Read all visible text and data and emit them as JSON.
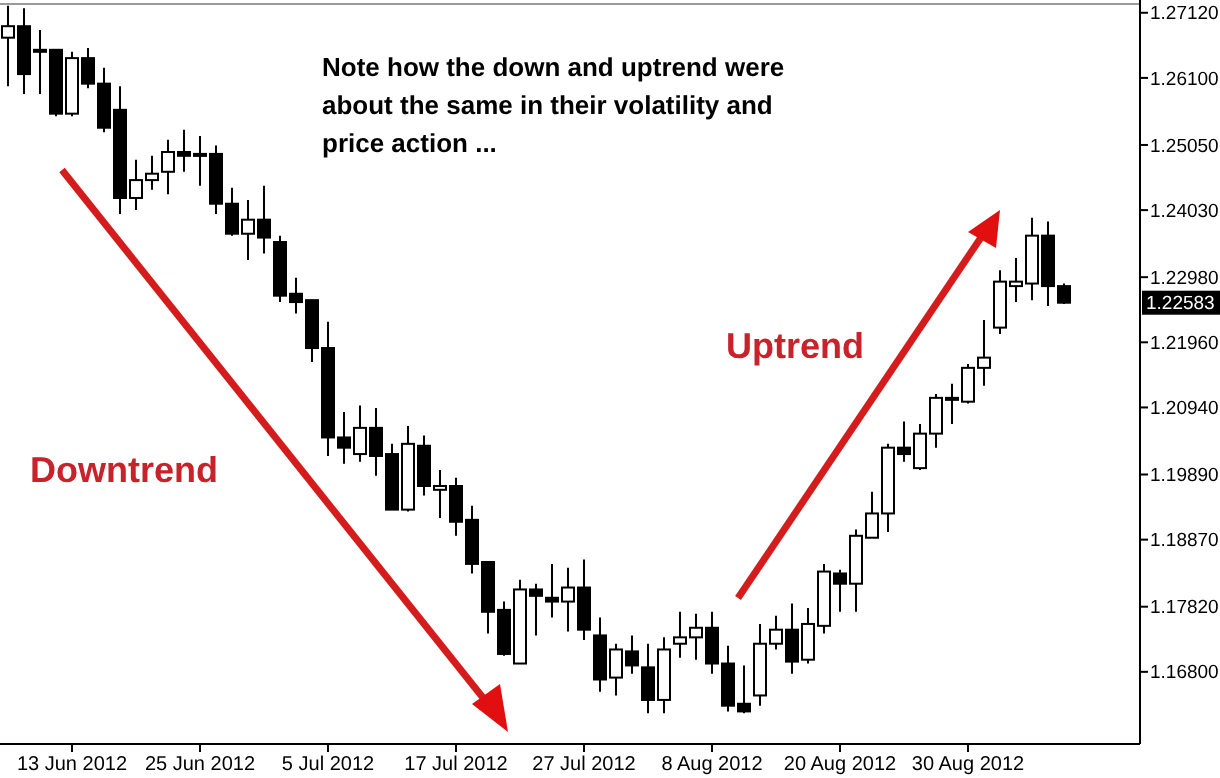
{
  "chart_data": {
    "type": "candlestick",
    "categories": [
      null,
      null,
      null,
      null,
      "13 Jun 2012",
      null,
      null,
      null,
      null,
      null,
      null,
      null,
      "25 Jun 2012",
      null,
      null,
      null,
      null,
      null,
      null,
      null,
      "5 Jul 2012",
      null,
      null,
      null,
      null,
      null,
      null,
      null,
      "17 Jul 2012",
      null,
      null,
      null,
      null,
      null,
      null,
      null,
      "27 Jul 2012",
      null,
      null,
      null,
      null,
      null,
      null,
      null,
      "8 Aug 2012",
      null,
      null,
      null,
      null,
      null,
      null,
      null,
      "20 Aug 2012",
      null,
      null,
      null,
      null,
      null,
      null,
      null,
      "30 Aug 2012",
      null,
      null,
      null,
      null,
      null,
      null
    ],
    "ohlc": [
      [
        1.2673,
        1.2723,
        1.2597,
        1.2691
      ],
      [
        1.2691,
        1.2719,
        1.2585,
        1.2616
      ],
      [
        1.2654,
        1.2685,
        1.2585,
        1.2651
      ],
      [
        1.2654,
        1.2654,
        1.255,
        1.2554
      ],
      [
        1.2554,
        1.2651,
        1.255,
        1.2641
      ],
      [
        1.2641,
        1.2657,
        1.2594,
        1.2601
      ],
      [
        1.2601,
        1.2626,
        1.2525,
        1.2532
      ],
      [
        1.256,
        1.2597,
        1.2397,
        1.2422
      ],
      [
        1.2422,
        1.2482,
        1.2403,
        1.245
      ],
      [
        1.245,
        1.2488,
        1.2435,
        1.246
      ],
      [
        1.2463,
        1.2513,
        1.2428,
        1.2494
      ],
      [
        1.2494,
        1.2529,
        1.2463,
        1.2488
      ],
      [
        1.2491,
        1.2519,
        1.2441,
        1.2488
      ],
      [
        1.2491,
        1.2504,
        1.2397,
        1.2413
      ],
      [
        1.2413,
        1.2438,
        1.2363,
        1.2366
      ],
      [
        1.2366,
        1.2419,
        1.2325,
        1.2388
      ],
      [
        1.2388,
        1.2441,
        1.2335,
        1.236
      ],
      [
        1.2353,
        1.2363,
        1.2259,
        1.2269
      ],
      [
        1.2272,
        1.2297,
        1.2241,
        1.2259
      ],
      [
        1.2262,
        1.2262,
        1.2165,
        1.2187
      ],
      [
        1.2187,
        1.2228,
        1.2018,
        1.2047
      ],
      [
        1.2047,
        1.2087,
        1.2006,
        1.2031
      ],
      [
        1.2021,
        1.2097,
        1.2009,
        1.2062
      ],
      [
        1.2062,
        1.2093,
        1.1987,
        1.2018
      ],
      [
        1.2021,
        1.2037,
        1.1934,
        1.1934
      ],
      [
        1.1934,
        1.2065,
        1.1931,
        1.2037
      ],
      [
        1.2034,
        1.205,
        1.1956,
        1.1971
      ],
      [
        1.1965,
        1.1996,
        1.1921,
        1.1971
      ],
      [
        1.1971,
        1.1984,
        1.1893,
        1.1915
      ],
      [
        1.1918,
        1.194,
        1.1834,
        1.1849
      ],
      [
        1.1852,
        1.1852,
        1.174,
        1.1774
      ],
      [
        1.1777,
        1.179,
        1.1705,
        1.1708
      ],
      [
        1.1693,
        1.1824,
        1.1693,
        1.1809
      ],
      [
        1.1809,
        1.1818,
        1.1737,
        1.1799
      ],
      [
        1.1796,
        1.1849,
        1.1765,
        1.179
      ],
      [
        1.179,
        1.1843,
        1.1743,
        1.1812
      ],
      [
        1.1812,
        1.1856,
        1.173,
        1.1746
      ],
      [
        1.1737,
        1.1765,
        1.1649,
        1.1668
      ],
      [
        1.1671,
        1.1724,
        1.1643,
        1.1715
      ],
      [
        1.1712,
        1.1737,
        1.1677,
        1.169
      ],
      [
        1.1687,
        1.1724,
        1.1615,
        1.1636
      ],
      [
        1.1636,
        1.1734,
        1.1615,
        1.1715
      ],
      [
        1.1724,
        1.1774,
        1.1702,
        1.1734
      ],
      [
        1.1734,
        1.1771,
        1.1699,
        1.1749
      ],
      [
        1.1749,
        1.1774,
        1.1677,
        1.1693
      ],
      [
        1.1693,
        1.1721,
        1.1618,
        1.1627
      ],
      [
        1.163,
        1.169,
        1.1615,
        1.1618
      ],
      [
        1.1643,
        1.1755,
        1.1627,
        1.1724
      ],
      [
        1.1724,
        1.1768,
        1.1715,
        1.1746
      ],
      [
        1.1746,
        1.1787,
        1.1677,
        1.1696
      ],
      [
        1.1699,
        1.178,
        1.1693,
        1.1755
      ],
      [
        1.1752,
        1.1849,
        1.174,
        1.1837
      ],
      [
        1.1834,
        1.184,
        1.1774,
        1.1818
      ],
      [
        1.1818,
        1.1903,
        1.1774,
        1.1893
      ],
      [
        1.189,
        1.1962,
        1.189,
        1.1928
      ],
      [
        1.1928,
        1.2037,
        1.1899,
        1.2031
      ],
      [
        1.2031,
        1.2072,
        1.2009,
        1.2021
      ],
      [
        1.1999,
        1.2068,
        1.1996,
        1.2053
      ],
      [
        1.2053,
        1.2115,
        1.2031,
        1.2109
      ],
      [
        1.2106,
        1.2131,
        1.2068,
        1.2109
      ],
      [
        1.2103,
        1.2162,
        1.21,
        1.2156
      ],
      [
        1.2156,
        1.2231,
        1.2128,
        1.2172
      ],
      [
        1.2219,
        1.2309,
        1.2209,
        1.2291
      ],
      [
        1.2284,
        1.2328,
        1.2259,
        1.2291
      ],
      [
        1.2288,
        1.2391,
        1.2262,
        1.2363
      ],
      [
        1.2363,
        1.2385,
        1.2253,
        1.2284
      ],
      [
        1.2284,
        1.2288,
        1.2256,
        1.2258
      ]
    ],
    "ylim": [
      1.1567,
      1.2732
    ],
    "yticks": [
      {
        "value": 1.2712,
        "label": "1.27120"
      },
      {
        "value": 1.261,
        "label": "1.26100"
      },
      {
        "value": 1.2505,
        "label": "1.25050"
      },
      {
        "value": 1.2403,
        "label": "1.24030"
      },
      {
        "value": 1.2298,
        "label": "1.22980"
      },
      {
        "value": 1.2196,
        "label": "1.21960"
      },
      {
        "value": 1.2094,
        "label": "1.20940"
      },
      {
        "value": 1.1989,
        "label": "1.19890"
      },
      {
        "value": 1.1887,
        "label": "1.18870"
      },
      {
        "value": 1.1782,
        "label": "1.17820"
      },
      {
        "value": 1.168,
        "label": "1.16800"
      }
    ],
    "annotations": [
      "Note how the down and uptrend were about the same in their volatility and price action ...",
      "Downtrend",
      "Uptrend",
      "1.22583"
    ],
    "grid": false
  }
}
